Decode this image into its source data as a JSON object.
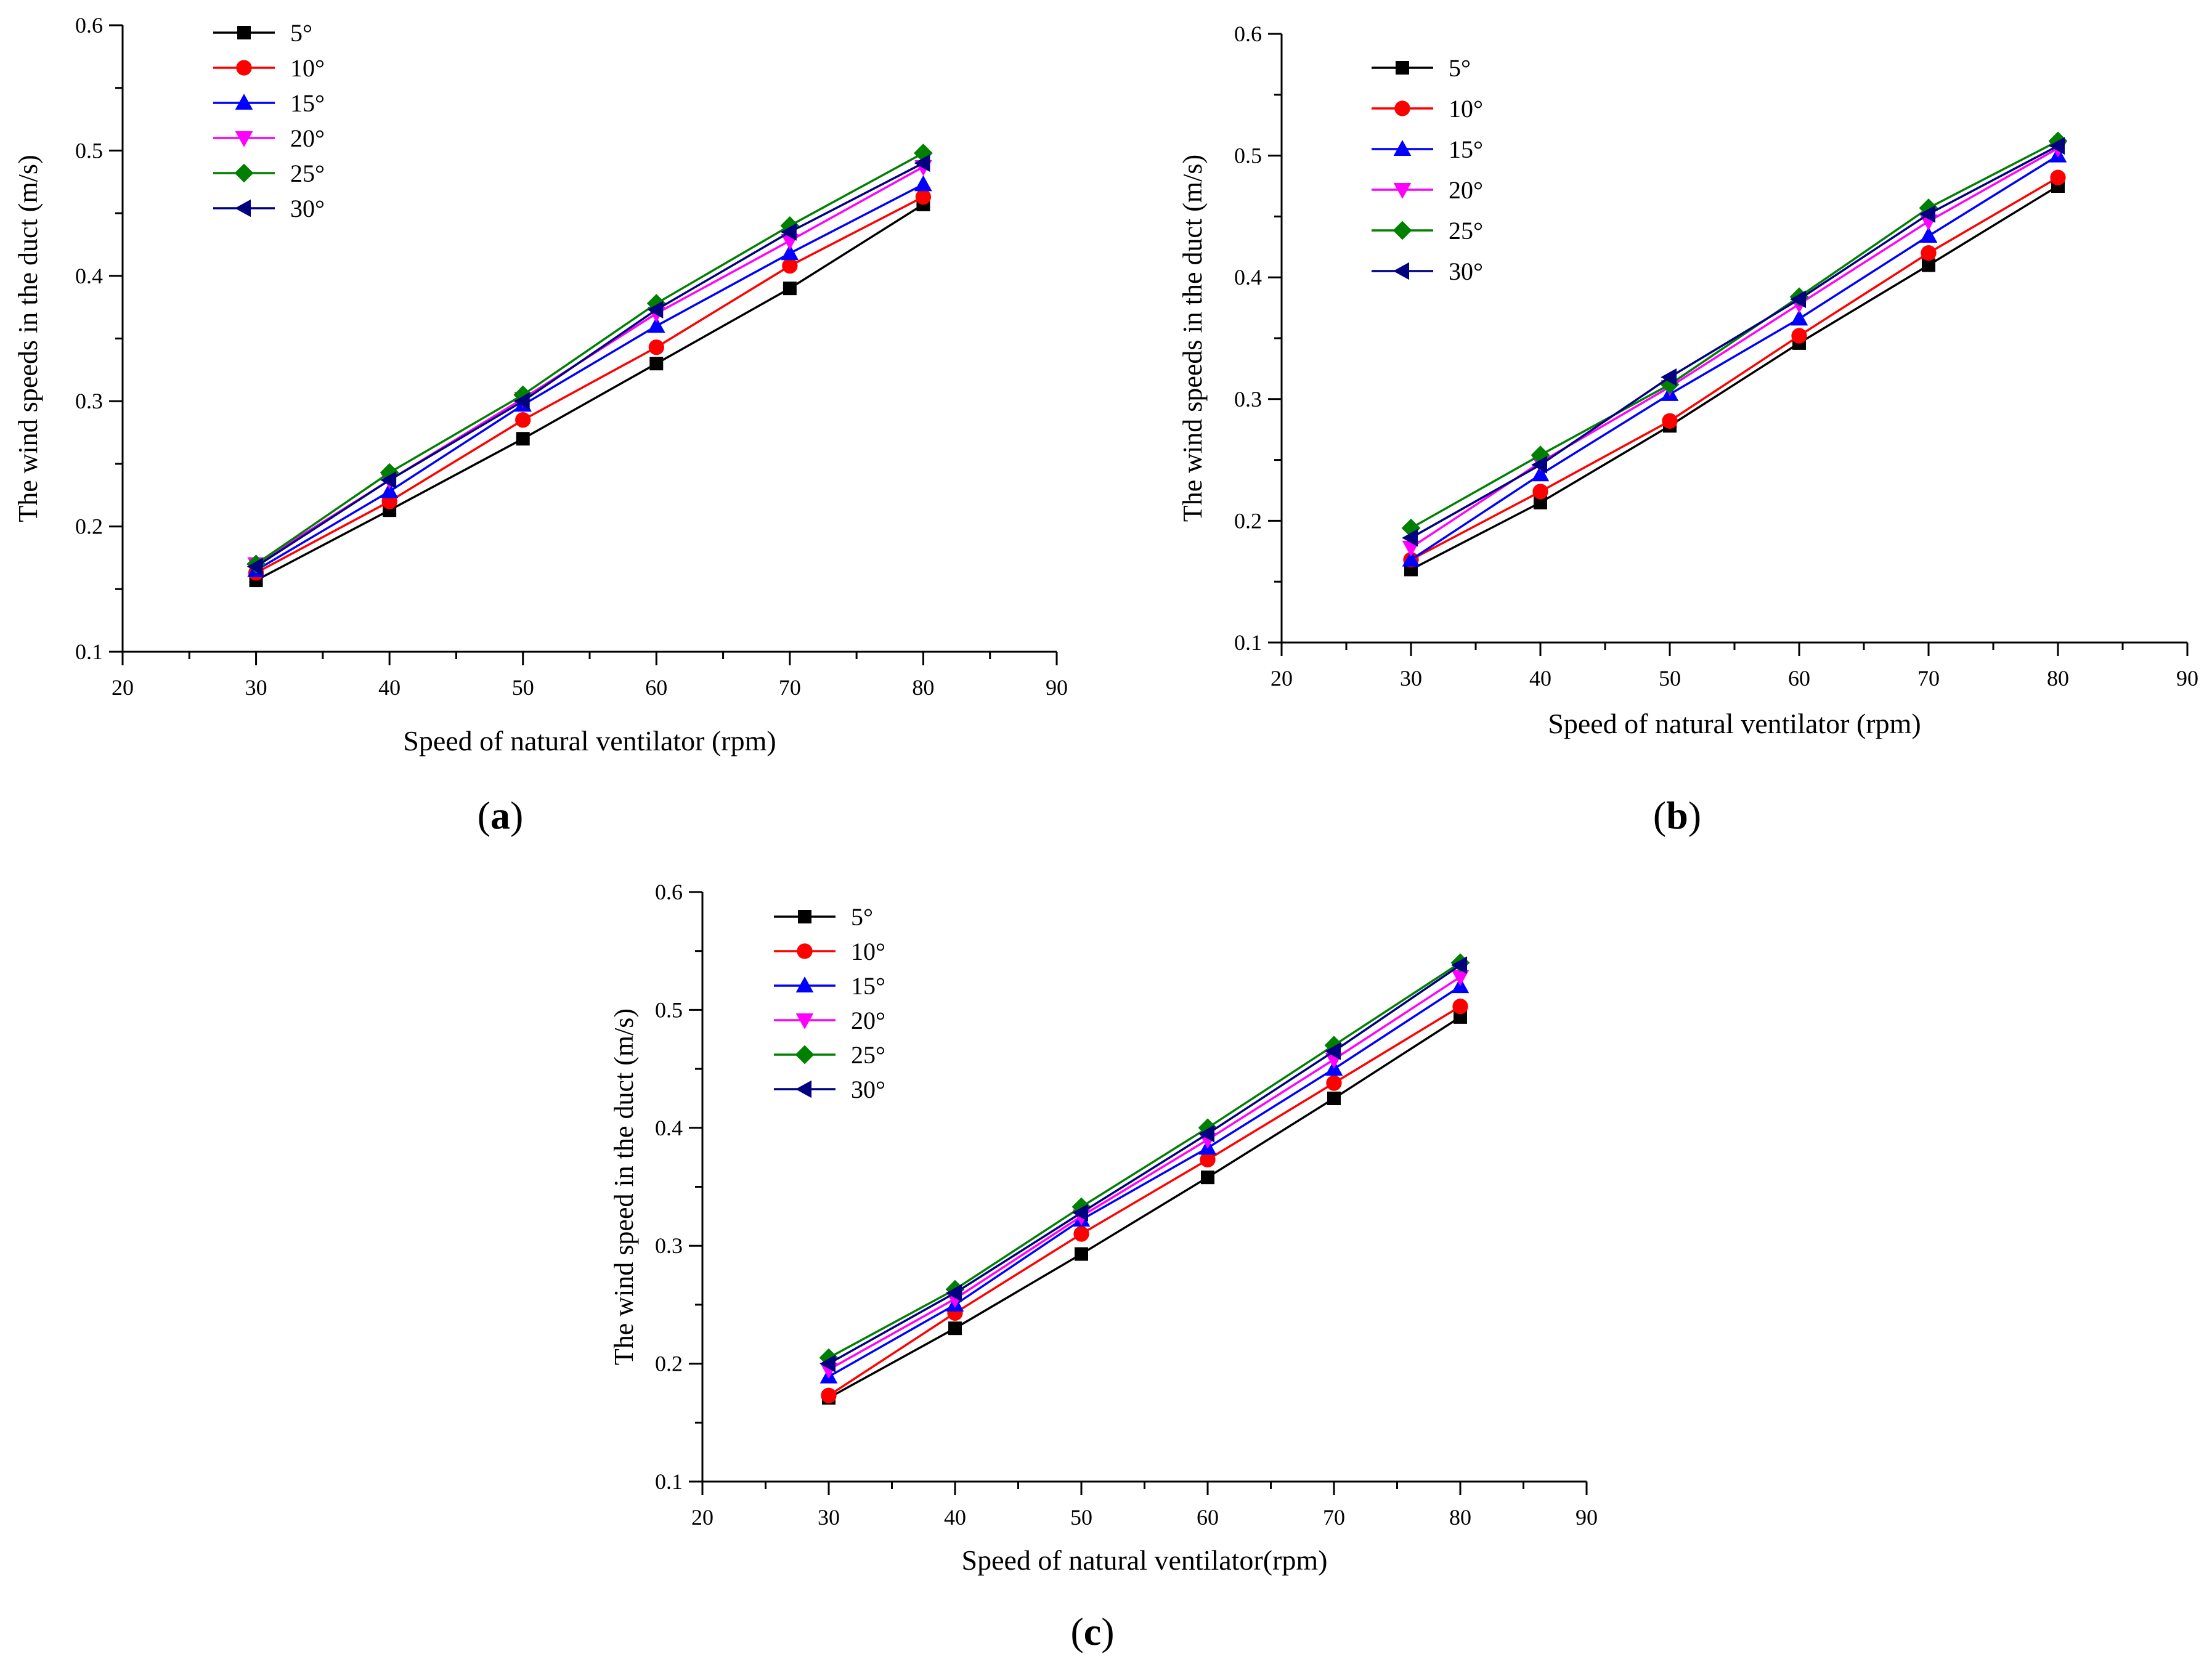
{
  "figure": {
    "description_labels": [
      "(a)",
      "(b)",
      "(c)"
    ]
  },
  "styles": {
    "series": [
      {
        "name": "5°",
        "color": "#000000",
        "marker": "square"
      },
      {
        "name": "10°",
        "color": "#ff0000",
        "marker": "circle"
      },
      {
        "name": "15°",
        "color": "#0000ff",
        "marker": "triangle-up"
      },
      {
        "name": "20°",
        "color": "#ff00ff",
        "marker": "triangle-down"
      },
      {
        "name": "25°",
        "color": "#008000",
        "marker": "diamond"
      },
      {
        "name": "30°",
        "color": "#000080",
        "marker": "triangle-left"
      }
    ]
  },
  "chart_data": [
    {
      "id": "a",
      "type": "line",
      "panel_label": "(a)",
      "xlabel": "Speed of natural ventilator (rpm)",
      "ylabel": "The wind speeds in the duct (m/s)",
      "xlim": [
        20,
        90
      ],
      "ylim": [
        0.1,
        0.6
      ],
      "xticks": [
        "20",
        "30",
        "40",
        "50",
        "60",
        "70",
        "80",
        "90"
      ],
      "yticks": [
        "0.1",
        "0.2",
        "0.3",
        "0.4",
        "0.5",
        "0.6"
      ],
      "legend": "top-left",
      "x": [
        30,
        40,
        50,
        60,
        70,
        80
      ],
      "series": [
        {
          "name": "5°",
          "values": [
            0.157,
            0.213,
            0.27,
            0.33,
            0.39,
            0.457
          ]
        },
        {
          "name": "10°",
          "values": [
            0.163,
            0.22,
            0.285,
            0.343,
            0.408,
            0.463
          ]
        },
        {
          "name": "15°",
          "values": [
            0.165,
            0.228,
            0.297,
            0.36,
            0.418,
            0.473
          ]
        },
        {
          "name": "20°",
          "values": [
            0.17,
            0.237,
            0.302,
            0.37,
            0.428,
            0.487
          ]
        },
        {
          "name": "25°",
          "values": [
            0.17,
            0.243,
            0.305,
            0.378,
            0.44,
            0.498
          ]
        },
        {
          "name": "30°",
          "values": [
            0.168,
            0.237,
            0.3,
            0.373,
            0.435,
            0.49
          ]
        }
      ]
    },
    {
      "id": "b",
      "type": "line",
      "panel_label": "(b)",
      "xlabel": "Speed of natural ventilator (rpm)",
      "ylabel": "The wind speeds in the duct (m/s)",
      "xlim": [
        20,
        90
      ],
      "ylim": [
        0.1,
        0.6
      ],
      "xticks": [
        "20",
        "30",
        "40",
        "50",
        "60",
        "70",
        "80",
        "90"
      ],
      "yticks": [
        "0.1",
        "0.2",
        "0.3",
        "0.4",
        "0.5",
        "0.6"
      ],
      "legend": "top-left",
      "x": [
        30,
        40,
        50,
        60,
        70,
        80
      ],
      "series": [
        {
          "name": "5°",
          "values": [
            0.16,
            0.215,
            0.278,
            0.346,
            0.41,
            0.475
          ]
        },
        {
          "name": "10°",
          "values": [
            0.168,
            0.224,
            0.282,
            0.352,
            0.42,
            0.482
          ]
        },
        {
          "name": "15°",
          "values": [
            0.168,
            0.238,
            0.304,
            0.366,
            0.434,
            0.5
          ]
        },
        {
          "name": "20°",
          "values": [
            0.178,
            0.248,
            0.31,
            0.378,
            0.446,
            0.506
          ]
        },
        {
          "name": "25°",
          "values": [
            0.194,
            0.254,
            0.312,
            0.384,
            0.457,
            0.512
          ]
        },
        {
          "name": "30°",
          "values": [
            0.186,
            0.246,
            0.318,
            0.382,
            0.452,
            0.508
          ]
        }
      ]
    },
    {
      "id": "c",
      "type": "line",
      "panel_label": "(c)",
      "xlabel": "Speed of natural ventilator(rpm)",
      "ylabel": "The wind speed in the duct (m/s)",
      "xlim": [
        20,
        90
      ],
      "ylim": [
        0.1,
        0.6
      ],
      "xticks": [
        "20",
        "30",
        "40",
        "50",
        "60",
        "70",
        "80",
        "90"
      ],
      "yticks": [
        "0.1",
        "0.2",
        "0.3",
        "0.4",
        "0.5",
        "0.6"
      ],
      "legend": "top-left",
      "x": [
        30,
        40,
        50,
        60,
        70,
        80
      ],
      "series": [
        {
          "name": "5°",
          "values": [
            0.171,
            0.23,
            0.293,
            0.358,
            0.425,
            0.494
          ]
        },
        {
          "name": "10°",
          "values": [
            0.173,
            0.243,
            0.31,
            0.373,
            0.438,
            0.503
          ]
        },
        {
          "name": "15°",
          "values": [
            0.189,
            0.25,
            0.322,
            0.383,
            0.45,
            0.52
          ]
        },
        {
          "name": "20°",
          "values": [
            0.195,
            0.255,
            0.325,
            0.39,
            0.458,
            0.528
          ]
        },
        {
          "name": "25°",
          "values": [
            0.205,
            0.263,
            0.333,
            0.4,
            0.47,
            0.54
          ]
        },
        {
          "name": "30°",
          "values": [
            0.2,
            0.26,
            0.328,
            0.395,
            0.465,
            0.538
          ]
        }
      ]
    }
  ]
}
